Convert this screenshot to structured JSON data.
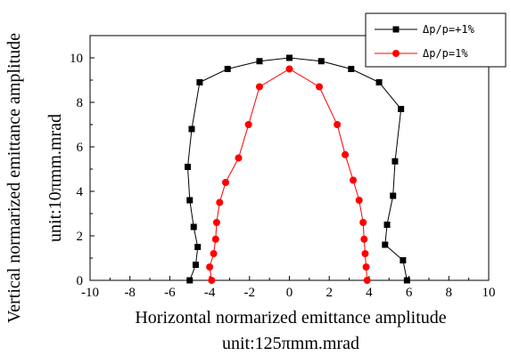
{
  "chart_data": {
    "type": "scatter",
    "xlabel": "Horizontal normarized emittance amplitude",
    "xlabel_unit": "unit:125πmm.mrad",
    "ylabel": "Vertical normarized emittance amplitude",
    "ylabel_unit": "unit:10πmm.mrad",
    "xlim": [
      -10,
      10
    ],
    "ylim": [
      0,
      11
    ],
    "xticks": [
      -10,
      -8,
      -6,
      -4,
      -2,
      0,
      2,
      4,
      6,
      8,
      10
    ],
    "yticks": [
      0,
      2,
      4,
      6,
      8,
      10
    ],
    "grid": false,
    "legend_position": "top-right",
    "series": [
      {
        "name": "Δp/p=+1%",
        "color": "#000000",
        "marker": "square",
        "points": [
          [
            -5.0,
            0.0
          ],
          [
            -4.7,
            0.7
          ],
          [
            -4.6,
            1.5
          ],
          [
            -4.8,
            2.4
          ],
          [
            -5.0,
            3.6
          ],
          [
            -5.1,
            5.1
          ],
          [
            -4.9,
            6.8
          ],
          [
            -4.5,
            8.9
          ],
          [
            -3.1,
            9.5
          ],
          [
            -1.5,
            9.85
          ],
          [
            0.0,
            10.0
          ],
          [
            1.6,
            9.85
          ],
          [
            3.1,
            9.5
          ],
          [
            4.5,
            8.9
          ],
          [
            5.6,
            7.7
          ],
          [
            5.3,
            5.35
          ],
          [
            5.2,
            3.8
          ],
          [
            4.9,
            2.5
          ],
          [
            4.8,
            1.6
          ],
          [
            5.7,
            0.9
          ],
          [
            5.9,
            0.0
          ]
        ]
      },
      {
        "name": "Δp/p=1%",
        "color": "#ff0000",
        "marker": "circle",
        "points": [
          [
            -3.9,
            0.0
          ],
          [
            -4.0,
            0.6
          ],
          [
            -3.8,
            1.2
          ],
          [
            -3.7,
            1.85
          ],
          [
            -3.65,
            2.6
          ],
          [
            -3.5,
            3.5
          ],
          [
            -3.2,
            4.4
          ],
          [
            -2.55,
            5.5
          ],
          [
            -2.05,
            7.0
          ],
          [
            -1.5,
            8.7
          ],
          [
            0.0,
            9.5
          ],
          [
            1.5,
            8.7
          ],
          [
            2.4,
            7.0
          ],
          [
            2.8,
            5.65
          ],
          [
            3.2,
            4.5
          ],
          [
            3.5,
            3.6
          ],
          [
            3.7,
            2.6
          ],
          [
            3.75,
            1.85
          ],
          [
            3.8,
            1.2
          ],
          [
            3.85,
            0.6
          ],
          [
            3.9,
            0.0
          ]
        ]
      }
    ]
  }
}
